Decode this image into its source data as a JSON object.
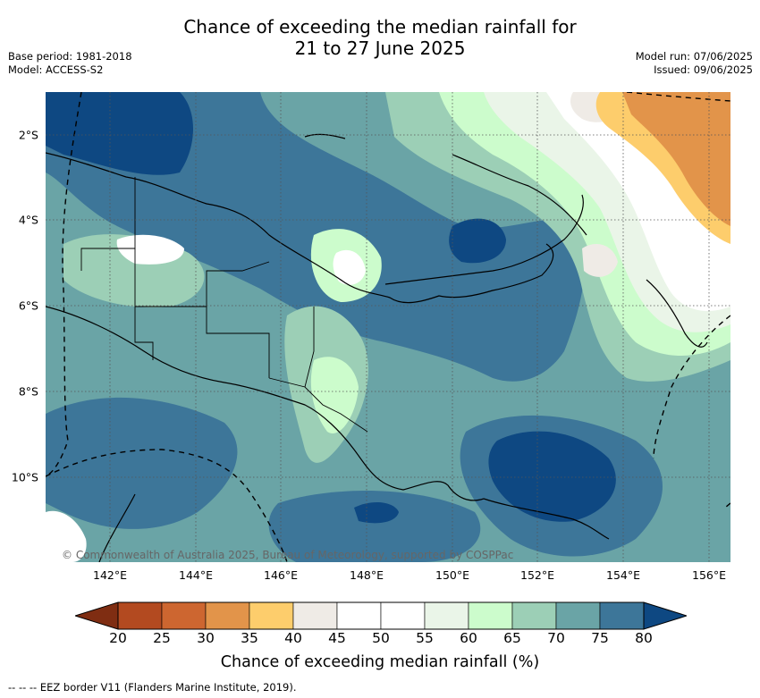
{
  "title_line1": "Chance of exceeding the median rainfall for",
  "title_line2": "21 to 27 June 2025",
  "base_period": "Base period: 1981-2018",
  "model": "Model: ACCESS-S2",
  "model_run": "Model run: 07/06/2025",
  "issued": "Issued: 09/06/2025",
  "lat_labels": [
    "2°S",
    "4°S",
    "6°S",
    "8°S",
    "10°S"
  ],
  "lon_labels": [
    "142°E",
    "144°E",
    "146°E",
    "148°E",
    "150°E",
    "152°E",
    "154°E",
    "156°E"
  ],
  "copyright": "© Commonwealth of Australia 2025, Bureau of Meteorology, supported by COSPPac",
  "colorbar": {
    "ticks": [
      "20",
      "25",
      "30",
      "35",
      "40",
      "45",
      "50",
      "55",
      "60",
      "65",
      "70",
      "75",
      "80"
    ],
    "label": "Chance of exceeding median rainfall (%)",
    "colors": [
      "#7f2d12",
      "#b34a20",
      "#cd6630",
      "#e2944a",
      "#fdcd6c",
      "#efebe6",
      "#ffffff",
      "#ffffff",
      "#eaf5e8",
      "#ccfccc",
      "#9ccfb6",
      "#6aa4a6",
      "#3d7699",
      "#0e4882"
    ]
  },
  "eez_legend": "-- -- -- EEZ border V11 (Flanders Marine Institute, 2019)."
}
